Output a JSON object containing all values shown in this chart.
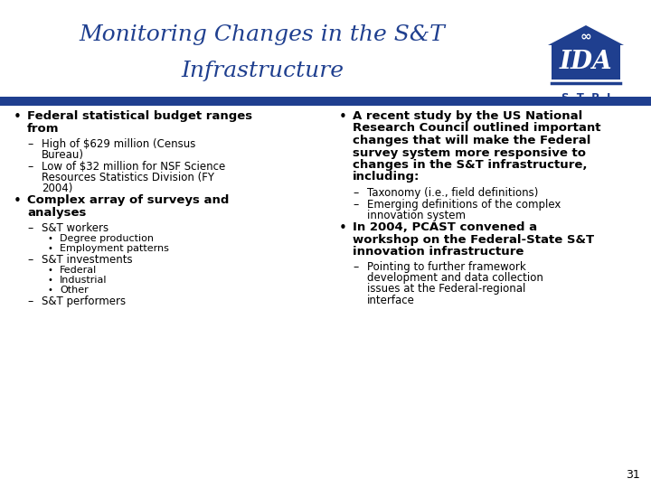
{
  "title_line1": "Monitoring Changes in the S&T",
  "title_line2": "Infrastructure",
  "title_color": "#1F3F8F",
  "divider_color": "#1F3F8F",
  "bg_color": "#FFFFFF",
  "slide_number": "31",
  "text_color": "#000000",
  "bullet_fontsize": 9.5,
  "small_fontsize": 8.5,
  "tiny_fontsize": 8.0,
  "left_items": [
    {
      "type": "bullet",
      "text": "Federal statistical budget ranges\nfrom",
      "bold": true
    },
    {
      "type": "dash",
      "text": "High of $629 million (Census\nBureau)",
      "bold": false
    },
    {
      "type": "dash",
      "text": "Low of $32 million for NSF Science\nResources Statistics Division (FY\n2004)",
      "bold": false
    },
    {
      "type": "bullet",
      "text": "Complex array of surveys and\nanalyses",
      "bold": true
    },
    {
      "type": "dash",
      "text": "S&T workers",
      "bold": false
    },
    {
      "type": "dot",
      "text": "Degree production",
      "bold": false
    },
    {
      "type": "dot",
      "text": "Employment patterns",
      "bold": false
    },
    {
      "type": "dash",
      "text": "S&T investments",
      "bold": false
    },
    {
      "type": "dot",
      "text": "Federal",
      "bold": false
    },
    {
      "type": "dot",
      "text": "Industrial",
      "bold": false
    },
    {
      "type": "dot",
      "text": "Other",
      "bold": false
    },
    {
      "type": "dash",
      "text": "S&T performers",
      "bold": false
    }
  ],
  "right_items": [
    {
      "type": "bullet",
      "text": "A recent study by the US National\nResearch Council outlined important\nchanges that will make the Federal\nsurvey system more responsive to\nchanges in the S&T infrastructure,\nincluding:",
      "bold": true
    },
    {
      "type": "dash",
      "text": "Taxonomy (i.e., field definitions)",
      "bold": false
    },
    {
      "type": "dash",
      "text": "Emerging definitions of the complex\ninnovation system",
      "bold": false
    },
    {
      "type": "bullet",
      "text": "In 2004, PCAST convened a\nworkshop on the Federal-State S&T\ninnovation infrastructure",
      "bold": true
    },
    {
      "type": "dash",
      "text": "Pointing to further framework\ndevelopment and data collection\nissues at the Federal-regional\ninterface",
      "bold": false
    }
  ]
}
